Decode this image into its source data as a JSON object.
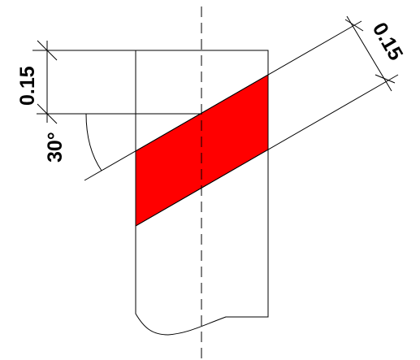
{
  "drawing": {
    "dimension_top_height": "0.15",
    "dimension_angle": "30°",
    "dimension_band_width": "0.15",
    "highlight_color": "#ff0000",
    "line_color": "#000000"
  }
}
